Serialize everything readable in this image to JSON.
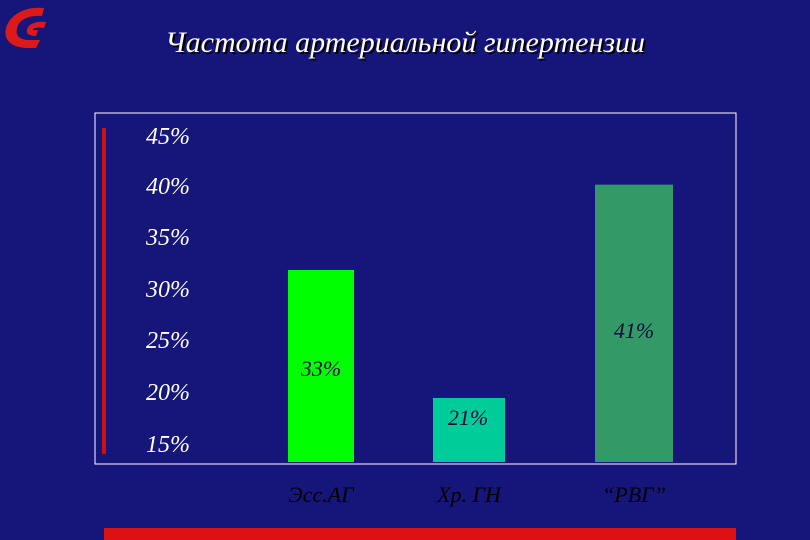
{
  "slide": {
    "title": "Частота артериальной гипертензии"
  },
  "icons": {
    "logo": "red-swoosh-logo-icon"
  },
  "colors": {
    "background": "#16167a",
    "accent_red": "#cc1111"
  },
  "chart_data": {
    "type": "bar",
    "categories": [
      "Эсс.АГ",
      "Хр. ГН",
      "“РВГ”"
    ],
    "values": [
      33,
      21,
      41
    ],
    "value_labels": [
      "33%",
      "21%",
      "41%"
    ],
    "bar_colors": [
      "#00ff00",
      "#00cc99",
      "#339966"
    ],
    "yticks": [
      "15%",
      "20%",
      "25%",
      "30%",
      "35%",
      "40%",
      "45%"
    ],
    "ylim": [
      15,
      45
    ],
    "grid": false,
    "legend": "none"
  }
}
